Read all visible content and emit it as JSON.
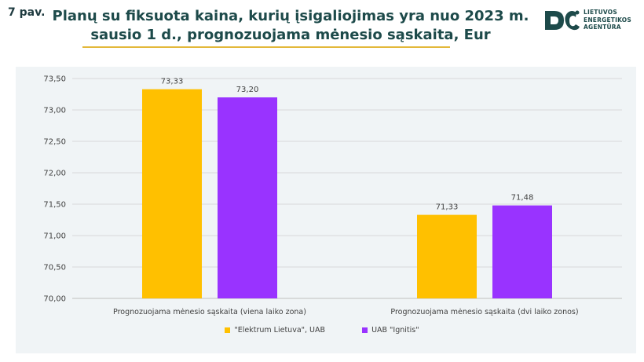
{
  "figure_label": "7 pav.",
  "title_line1": "Planų su fiksuota kaina, kurių įsigaliojimas yra nuo 2023 m.",
  "title_line2": "sausio 1 d., prognozuojama mėnesio sąskaita, Eur",
  "logo": {
    "lines": [
      "LIETUVOS",
      "ENERGETIKOS",
      "AGENTŪRA"
    ],
    "color": "#1d4a4a"
  },
  "chart_data": {
    "type": "bar",
    "categories": [
      "Prognozuojama mėnesio sąskaita (viena laiko zona)",
      "Prognozuojama mėnesio sąskaita (dvi laiko zonos)"
    ],
    "series": [
      {
        "name": "\"Elektrum Lietuva\", UAB",
        "values": [
          73.33,
          71.33
        ],
        "labels": [
          "73,33",
          "71,33"
        ],
        "color": "#ffc000"
      },
      {
        "name": "UAB \"Ignitis\"",
        "values": [
          73.2,
          71.48
        ],
        "labels": [
          "73,20",
          "71,48"
        ],
        "color": "#9933ff"
      }
    ],
    "ylim": [
      70.0,
      73.5
    ],
    "yticks": [
      70.0,
      70.5,
      71.0,
      71.5,
      72.0,
      72.5,
      73.0,
      73.5
    ],
    "ytick_labels": [
      "70,00",
      "70,50",
      "71,00",
      "71,50",
      "72,00",
      "72,50",
      "73,00",
      "73,50"
    ],
    "grid": true,
    "legend": "bottom",
    "xlabel": "",
    "ylabel": ""
  }
}
